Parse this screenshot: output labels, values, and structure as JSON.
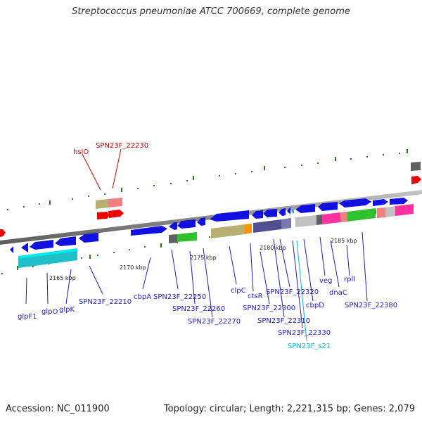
{
  "title": "Streptococcus pneumoniae ATCC 700669, complete genome",
  "footer": {
    "accession": "Accession: NC_011900",
    "summary": "Topology: circular; Length: 2,221,315 bp; Genes: 2,079"
  },
  "colors": {
    "backbone": "#8a8a8a",
    "gene_arrow": "#1010e0",
    "label_blue": "#1c1cc8",
    "label_red": "#cc0000",
    "label_cyan": "#00b8e0",
    "dot_green": "#2a7a1a",
    "cog_cyan": "#00e8f0",
    "cog_olive": "#b8b070",
    "cog_salmon": "#f08080",
    "cog_purple": "#505090",
    "cog_gray": "#c0c0c0",
    "cog_pink": "#ff30a0",
    "cog_green": "#30c030",
    "cog_dark": "#606060",
    "cog_orange": "#ff9000"
  },
  "scale_labels": [
    "2165 kbp",
    "2170 kbp",
    "2175 kbp",
    "2180 kbp",
    "2185 kbp"
  ],
  "genes": [
    {
      "name": "hslO",
      "color": "red"
    },
    {
      "name": "SPN23F_22230",
      "color": "red"
    },
    {
      "name": "glpF1",
      "color": "blue"
    },
    {
      "name": "glpO",
      "color": "blue"
    },
    {
      "name": "glpK",
      "color": "blue"
    },
    {
      "name": "SPN23F_22210",
      "color": "blue"
    },
    {
      "name": "cbpA",
      "color": "blue"
    },
    {
      "name": "SPN23F_22250",
      "color": "blue"
    },
    {
      "name": "SPN23F_22260",
      "color": "blue"
    },
    {
      "name": "SPN23F_22270",
      "color": "blue"
    },
    {
      "name": "clpC",
      "color": "blue"
    },
    {
      "name": "ctsR",
      "color": "blue"
    },
    {
      "name": "SPN23F_22320",
      "color": "blue"
    },
    {
      "name": "SPN23F_22300",
      "color": "blue"
    },
    {
      "name": "SPN23F_22310",
      "color": "blue"
    },
    {
      "name": "SPN23F_22330",
      "color": "blue"
    },
    {
      "name": "SPN23F_s21",
      "color": "cyan"
    },
    {
      "name": "cbpD",
      "color": "blue"
    },
    {
      "name": "veg",
      "color": "blue"
    },
    {
      "name": "dnaC",
      "color": "blue"
    },
    {
      "name": "rplI",
      "color": "blue"
    },
    {
      "name": "SPN23F_22380",
      "color": "blue"
    }
  ]
}
